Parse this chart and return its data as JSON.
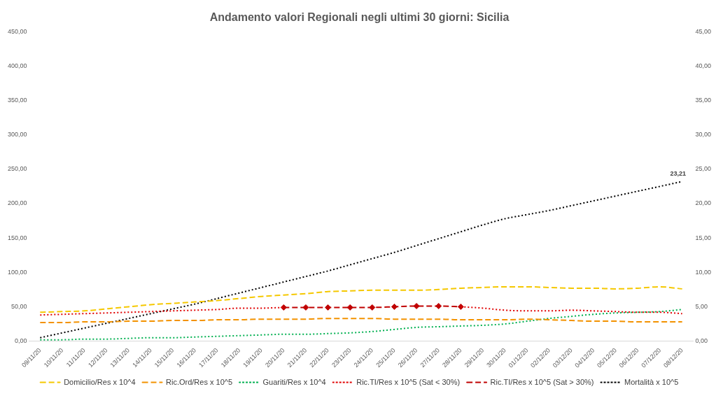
{
  "chart_data": {
    "type": "line",
    "title": "Andamento valori Regionali negli ultimi 30 giorni: Sicilia",
    "categories": [
      "09/11/20",
      "10/11/20",
      "11/11/20",
      "12/11/20",
      "13/11/20",
      "14/11/20",
      "15/11/20",
      "16/11/20",
      "17/11/20",
      "18/11/20",
      "19/11/20",
      "20/11/20",
      "21/11/20",
      "22/11/20",
      "23/11/20",
      "24/11/20",
      "25/11/20",
      "26/11/20",
      "27/11/20",
      "28/11/20",
      "29/11/20",
      "30/11/20",
      "01/12/20",
      "02/12/20",
      "03/12/20",
      "04/12/20",
      "05/12/20",
      "06/12/20",
      "07/12/20",
      "08/12/20"
    ],
    "series": [
      {
        "name": "Domicilio/Res x 10^4",
        "color": "#f5c800",
        "line_style": "dashed",
        "values": [
          42,
          43,
          44,
          47,
          50,
          53,
          55,
          57,
          59,
          62,
          65,
          67,
          69,
          72,
          73,
          74,
          74,
          74,
          75,
          77,
          78,
          79,
          79,
          78,
          77,
          77,
          76,
          77,
          79,
          76
        ]
      },
      {
        "name": "Ric.Ord/Res x 10^5",
        "color": "#f39200",
        "line_style": "dashed",
        "values": [
          27,
          27,
          28,
          28,
          29,
          29,
          30,
          30,
          31,
          31,
          32,
          32,
          32,
          33,
          33,
          33,
          32,
          32,
          32,
          31,
          31,
          31,
          32,
          31,
          30,
          29,
          29,
          28,
          28,
          28
        ]
      },
      {
        "name": "Guariti/Res x 10^4",
        "color": "#00b050",
        "line_style": "dotted",
        "values": [
          2,
          2,
          3,
          3,
          4,
          5,
          5,
          6,
          7,
          8,
          9,
          10,
          10,
          11,
          12,
          14,
          17,
          20,
          21,
          22,
          23,
          25,
          29,
          33,
          36,
          39,
          41,
          42,
          43,
          46
        ]
      },
      {
        "name": "Ric.TI/Res x 10^5 (Sat < 30%)",
        "color": "#e00000",
        "axis": "y2",
        "line_style": "dotted",
        "values": [
          3.8,
          3.9,
          4.0,
          4.1,
          4.2,
          4.3,
          4.4,
          4.5,
          4.6,
          4.8,
          4.8,
          4.9,
          null,
          null,
          null,
          null,
          null,
          null,
          null,
          5.0,
          4.8,
          4.5,
          4.4,
          4.4,
          4.5,
          4.4,
          4.3,
          4.2,
          4.2,
          4.0
        ]
      },
      {
        "name": "Ric.TI/Res x 10^5 (Sat > 30%)",
        "color": "#c00000",
        "axis": "y2",
        "line_style": "dashed",
        "marker": "diamond",
        "values": [
          null,
          null,
          null,
          null,
          null,
          null,
          null,
          null,
          null,
          null,
          null,
          4.9,
          4.9,
          4.9,
          4.9,
          4.9,
          5.0,
          5.1,
          5.1,
          5.0,
          null,
          null,
          null,
          null,
          null,
          null,
          null,
          null,
          null,
          null
        ]
      },
      {
        "name": "Mortalità x 10^5",
        "color": "#000000",
        "axis": "y2",
        "line_style": "dotted",
        "values": [
          0.5,
          1.2,
          1.9,
          2.6,
          3.3,
          4.0,
          4.7,
          5.4,
          6.2,
          7.0,
          7.8,
          8.6,
          9.4,
          10.2,
          11.1,
          12.0,
          12.9,
          13.9,
          14.9,
          15.9,
          16.9,
          17.8,
          18.4,
          19.0,
          19.7,
          20.4,
          21.1,
          21.8,
          22.5,
          23.21
        ],
        "value_labels": [
          null,
          null,
          null,
          null,
          null,
          null,
          null,
          null,
          null,
          null,
          null,
          null,
          null,
          null,
          null,
          null,
          null,
          null,
          null,
          null,
          null,
          null,
          null,
          null,
          null,
          null,
          null,
          null,
          null,
          "23,21"
        ]
      }
    ],
    "ylim": [
      0,
      450
    ],
    "yticks": [
      {
        "value": 0,
        "label": "0,00"
      },
      {
        "value": 50,
        "label": "50,00"
      },
      {
        "value": 100,
        "label": "100,00"
      },
      {
        "value": 150,
        "label": "150,00"
      },
      {
        "value": 200,
        "label": "200,00"
      },
      {
        "value": 250,
        "label": "250,00"
      },
      {
        "value": 300,
        "label": "300,00"
      },
      {
        "value": 350,
        "label": "350,00"
      },
      {
        "value": 400,
        "label": "400,00"
      },
      {
        "value": 450,
        "label": "450,00"
      }
    ],
    "y2lim": [
      0,
      45
    ],
    "y2ticks": [
      {
        "value": 0,
        "label": "0,00"
      },
      {
        "value": 5,
        "label": "5,00"
      },
      {
        "value": 10,
        "label": "10,00"
      },
      {
        "value": 15,
        "label": "15,00"
      },
      {
        "value": 20,
        "label": "20,00"
      },
      {
        "value": 25,
        "label": "25,00"
      },
      {
        "value": 30,
        "label": "30,00"
      },
      {
        "value": 35,
        "label": "35,00"
      },
      {
        "value": 40,
        "label": "40,00"
      },
      {
        "value": 45,
        "label": "45,00"
      }
    ],
    "grid": false,
    "legend": "bottom",
    "marker": "none"
  }
}
